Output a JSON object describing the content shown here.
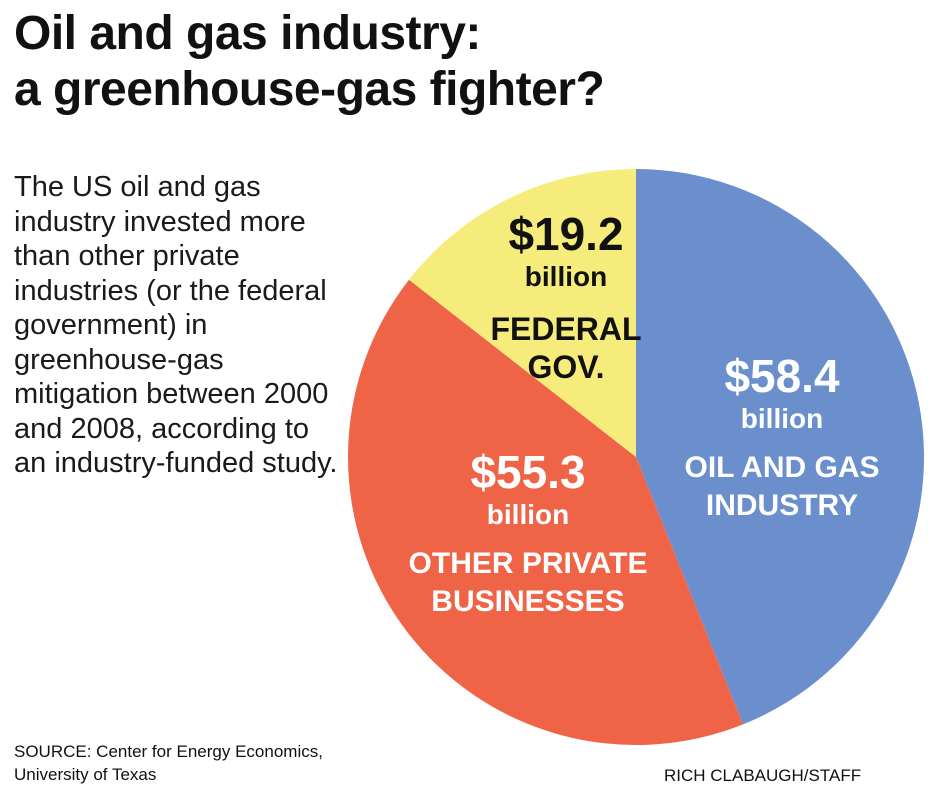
{
  "title_line1": "Oil and gas industry:",
  "title_line2": "a greenhouse-gas fighter?",
  "description": "The US oil and gas industry invested more than other private industries (or the federal government) in greenhouse-gas mitigation between 2000 and 2008, according to an industry-funded study.",
  "source_line1": "SOURCE: Center for Energy Economics,",
  "source_line2": "University of Texas",
  "credit": "RICH CLABAUGH/STAFF",
  "chart_data": {
    "type": "pie",
    "unit": "billion",
    "slices": [
      {
        "name": "OIL AND GAS INDUSTRY",
        "name_lines": [
          "OIL AND GAS",
          "INDUSTRY"
        ],
        "value": 58.4,
        "value_label": "$58.4",
        "color": "#6a8fcc",
        "text_color": "#ffffff"
      },
      {
        "name": "OTHER PRIVATE BUSINESSES",
        "name_lines": [
          "OTHER PRIVATE",
          "BUSINESSES"
        ],
        "value": 55.3,
        "value_label": "$55.3",
        "color": "#ef6446",
        "text_color": "#ffffff"
      },
      {
        "name": "FEDERAL GOV.",
        "name_lines": [
          "FEDERAL",
          "GOV."
        ],
        "value": 19.2,
        "value_label": "$19.2",
        "color": "#f5ec7b",
        "text_color": "#111111"
      }
    ]
  }
}
